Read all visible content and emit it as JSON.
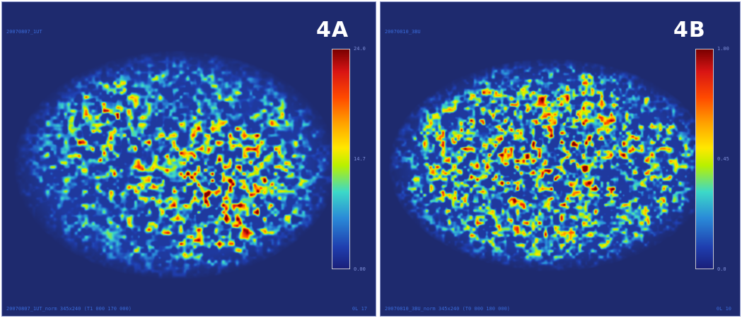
{
  "panels": [
    {
      "tag": "4A",
      "top_id": "20070807_1UT",
      "bottom_id": "20070807_1UT_norm 345x240 (T1 000 170 000)",
      "bottom_right": "0L 17",
      "colorbar": {
        "max": "24.0",
        "mid": "14.7",
        "min": "0.00"
      }
    },
    {
      "tag": "4B",
      "top_id": "20070810_3BU",
      "bottom_id": "20070810_3BU_norm 345x240 (T0 000 180 000)",
      "bottom_right": "0L 10",
      "colorbar": {
        "max": "1.00",
        "mid": "0.45",
        "min": "0.0"
      }
    }
  ],
  "colormap": [
    "#1e2a6e",
    "#1f3fb0",
    "#2a8ad8",
    "#3cd9c8",
    "#b8f000",
    "#ffe800",
    "#ff9d00",
    "#ff4a00",
    "#d81414",
    "#7a0000"
  ]
}
